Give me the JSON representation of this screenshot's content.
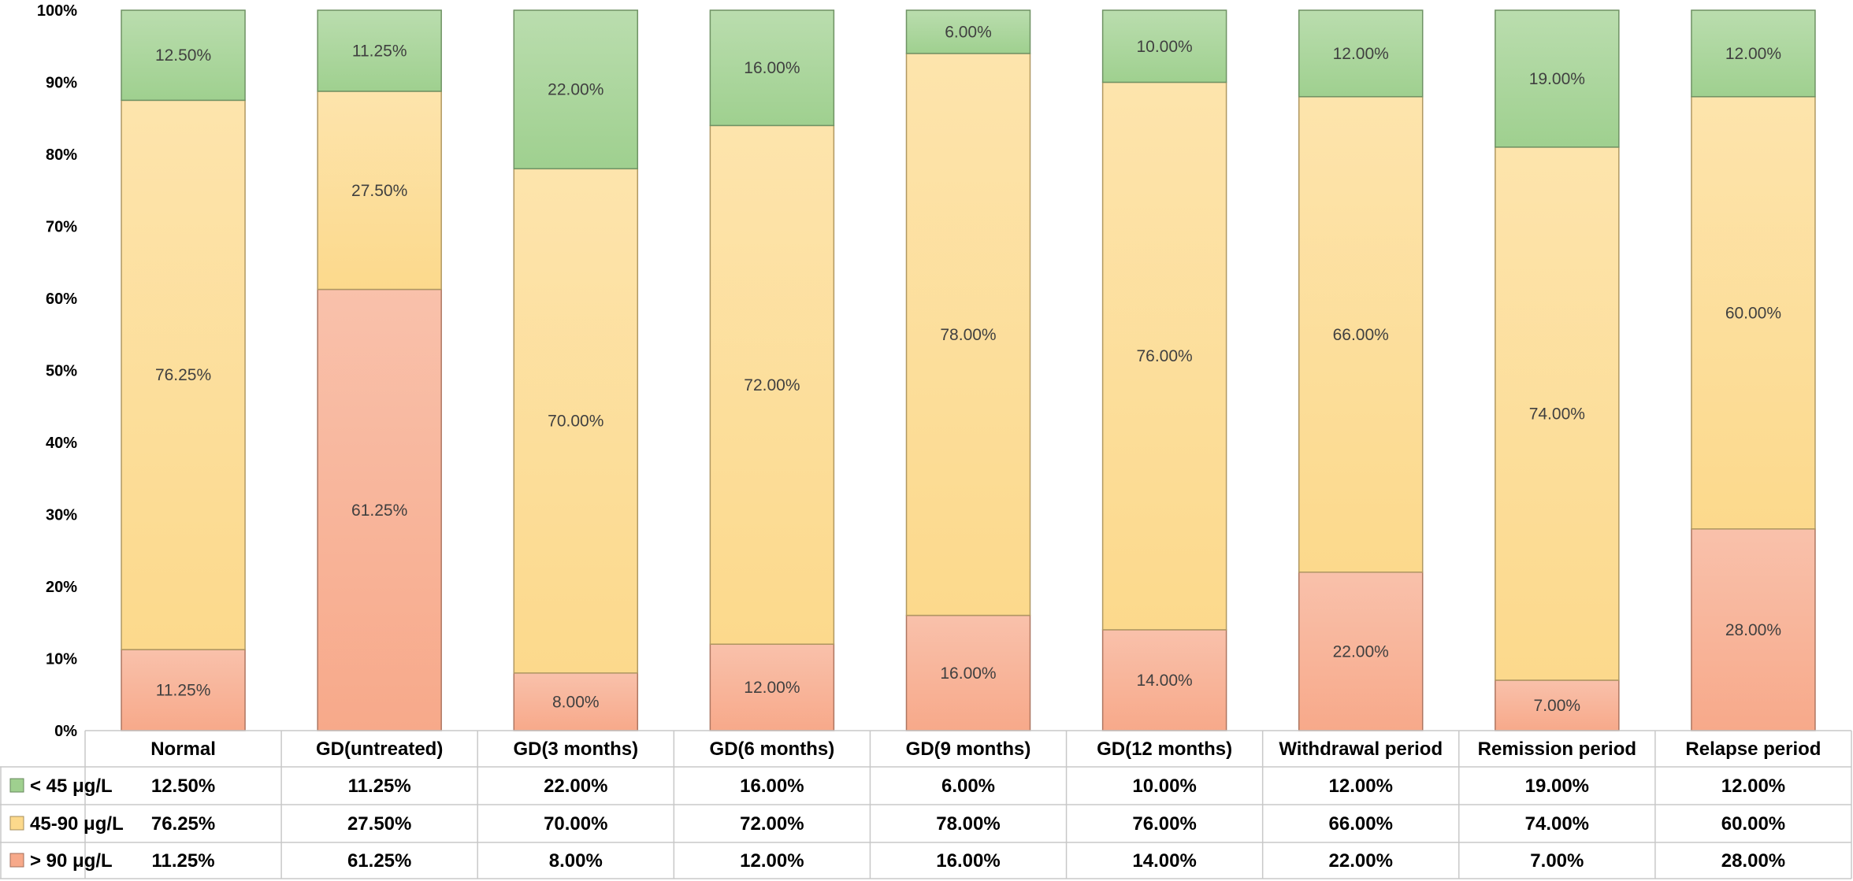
{
  "chart_data": {
    "type": "bar",
    "stacked": true,
    "normalized": true,
    "categories": [
      "Normal",
      "GD(untreated)",
      "GD(3 months)",
      "GD(6 months)",
      "GD(9 months)",
      "GD(12 months)",
      "Withdrawal period",
      "Remission period",
      "Relapse period"
    ],
    "series": [
      {
        "name": "< 45 μg/L",
        "legend_text": "< 45 μg/L",
        "color": "#9fd08f",
        "labels": [
          "12.50%",
          "11.25%",
          "22.00%",
          "16.00%",
          "6.00%",
          "10.00%",
          "12.00%",
          "19.00%",
          "12.00%"
        ],
        "values": [
          12.5,
          11.25,
          22,
          16,
          6,
          10,
          12,
          19,
          12
        ]
      },
      {
        "name": "45-90 μg/L",
        "legend_text": "45-90 μg/L",
        "color": "#fcd98c",
        "labels": [
          "76.25%",
          "27.50%",
          "70.00%",
          "72.00%",
          "78.00%",
          "76.00%",
          "66.00%",
          "74.00%",
          "60.00%"
        ],
        "values": [
          76.25,
          27.5,
          70,
          72,
          78,
          76,
          66,
          74,
          60
        ]
      },
      {
        "name": "> 90 μg/L",
        "legend_text": "> 90 μg/L",
        "color": "#f7a98a",
        "labels": [
          "11.25%",
          "61.25%",
          "8.00%",
          "12.00%",
          "16.00%",
          "14.00%",
          "22.00%",
          "7.00%",
          "28.00%"
        ],
        "values": [
          11.25,
          61.25,
          8,
          12,
          16,
          14,
          22,
          7,
          28
        ]
      }
    ],
    "stack_order_bottom_to_top": [
      "> 90 μg/L",
      "45-90 μg/L",
      "< 45 μg/L"
    ],
    "ylim": [
      0,
      100
    ],
    "yticks": [
      "0%",
      "10%",
      "20%",
      "30%",
      "40%",
      "50%",
      "60%",
      "70%",
      "80%",
      "90%",
      "100%"
    ],
    "title": "",
    "xlabel": "",
    "ylabel": "",
    "grid": false,
    "data_table": true,
    "table_rows_order": [
      "< 45 μg/L",
      "45-90 μg/L",
      "> 90 μg/L"
    ],
    "legend": "in data table"
  }
}
